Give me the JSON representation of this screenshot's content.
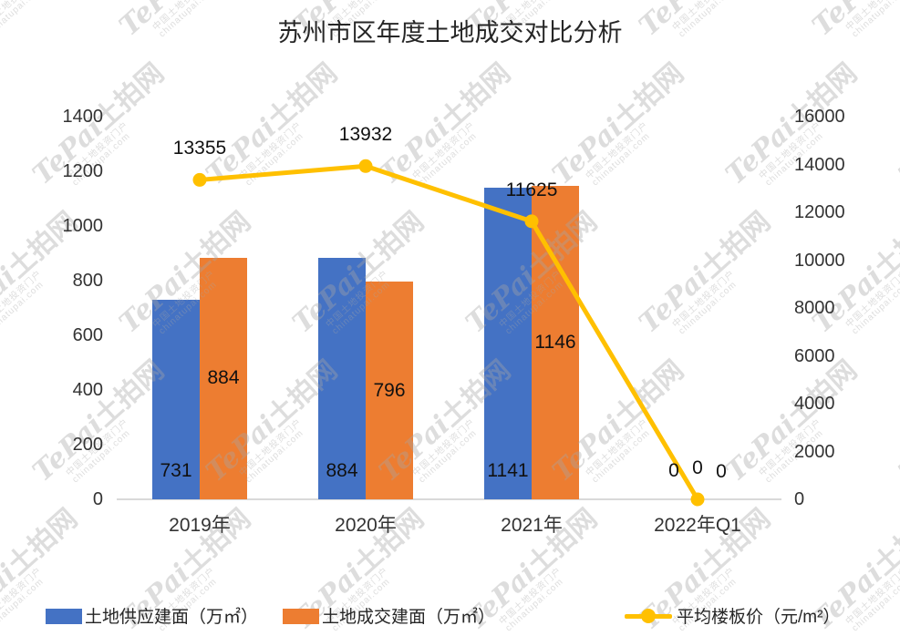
{
  "title": "苏州市区年度土地成交对比分析",
  "chart_data": {
    "type": "bar",
    "subtype": "grouped-bars-with-line-combo",
    "categories": [
      "2019年",
      "2020年",
      "2021年",
      "2022年Q1"
    ],
    "series": [
      {
        "name": "土地供应建面（万㎡）",
        "type": "bar",
        "axis": "left",
        "color": "#4472C4",
        "values": [
          731,
          884,
          1141,
          0
        ]
      },
      {
        "name": "土地成交建面（万㎡）",
        "type": "bar",
        "axis": "left",
        "color": "#ED7D31",
        "values": [
          884,
          796,
          1146,
          0
        ]
      },
      {
        "name": "平均楼板价（元/m²）",
        "type": "line",
        "axis": "right",
        "color": "#FFC000",
        "values": [
          13355,
          13932,
          11625,
          0
        ]
      }
    ],
    "left_axis": {
      "min": 0,
      "max": 1400,
      "step": 200,
      "ticks": [
        1400,
        1200,
        1000,
        800,
        600,
        400,
        200,
        0
      ]
    },
    "right_axis": {
      "min": 0,
      "max": 16000,
      "step": 2000,
      "ticks": [
        16000,
        14000,
        12000,
        10000,
        8000,
        6000,
        4000,
        2000,
        0
      ]
    },
    "grid": false,
    "legend_position": "bottom",
    "data_labels_shown": true
  },
  "watermark": {
    "brand_latin": "TePai",
    "brand_cn": "土拍网",
    "tagline": "中国土地投资门户",
    "site": "chinatupai.com"
  },
  "colors": {
    "bar_supply": "#4472C4",
    "bar_deal": "#ED7D31",
    "line_price": "#FFC000",
    "axis_line": "#D9D9D9",
    "text": "#262626"
  }
}
